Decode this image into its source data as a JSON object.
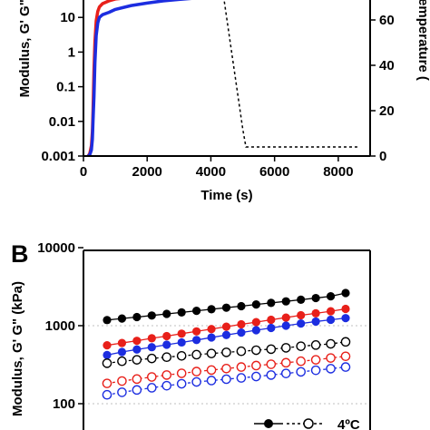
{
  "chart_data": [
    {
      "panel": "",
      "type": "line",
      "xlabel": "Time (s)",
      "ylabel": "Modulus, G' G\" (",
      "y2label": "Temperature (",
      "xlim": [
        0,
        9000
      ],
      "ylim": [
        0.001,
        300
      ],
      "yscale": "log",
      "y2lim": [
        0,
        80
      ],
      "xticks": [
        "0",
        "2000",
        "4000",
        "6000",
        "8000"
      ],
      "yticks": [
        "0.001",
        "0.01",
        "0.1",
        "1",
        "10"
      ],
      "y2ticks": [
        "0",
        "20",
        "40",
        "60"
      ],
      "series": [
        {
          "color": "#e8201a",
          "x": [
            150,
            200,
            250,
            280,
            300,
            330,
            360,
            400,
            450,
            500,
            600,
            800,
            1000,
            1500,
            2000,
            2500,
            3000,
            3500,
            4000
          ],
          "y": [
            0.001,
            0.0012,
            0.002,
            0.005,
            0.02,
            0.3,
            2,
            8,
            15,
            20,
            25,
            30,
            34,
            38,
            41,
            43,
            45,
            46,
            47
          ]
        },
        {
          "color": "#1c2de0",
          "x": [
            150,
            200,
            250,
            280,
            300,
            330,
            360,
            400,
            450,
            500,
            600,
            800,
            1000,
            1500,
            2000,
            2500,
            3000,
            3500,
            4000
          ],
          "y": [
            0.001,
            0.0011,
            0.0015,
            0.003,
            0.01,
            0.05,
            0.5,
            3,
            7,
            10,
            12,
            14,
            17,
            22,
            26,
            30,
            33,
            36,
            38
          ]
        }
      ],
      "temperature": {
        "x": [
          4300,
          5000,
          5100,
          5200,
          8600
        ],
        "y": [
          80,
          12,
          4,
          4,
          4
        ]
      }
    },
    {
      "panel": "B",
      "type": "line",
      "xlabel": "",
      "ylabel": "Modulus, G' G\" (kPa)",
      "ylim": [
        60,
        10000
      ],
      "yscale": "log",
      "yticks": [
        "100",
        "1000",
        "10000"
      ],
      "legend_label": "4ºC",
      "x": [
        1,
        2,
        3,
        4,
        5,
        6,
        7,
        8,
        9,
        10,
        11,
        12,
        13,
        14,
        15,
        16,
        17
      ],
      "series": [
        {
          "color": "#000000",
          "filled": true,
          "values": [
            1180,
            1235,
            1290,
            1350,
            1415,
            1480,
            1550,
            1625,
            1700,
            1780,
            1870,
            1960,
            2050,
            2150,
            2260,
            2380,
            2620
          ]
        },
        {
          "color": "#e8201a",
          "filled": true,
          "values": [
            560,
            600,
            640,
            690,
            735,
            790,
            845,
            905,
            970,
            1040,
            1110,
            1190,
            1270,
            1360,
            1440,
            1530,
            1640
          ]
        },
        {
          "color": "#1c2de0",
          "filled": true,
          "values": [
            420,
            460,
            495,
            530,
            570,
            610,
            655,
            705,
            760,
            815,
            875,
            935,
            1000,
            1065,
            1130,
            1190,
            1250
          ]
        },
        {
          "color": "#000000",
          "filled": false,
          "values": [
            330,
            350,
            365,
            380,
            395,
            410,
            425,
            440,
            455,
            470,
            485,
            500,
            520,
            545,
            565,
            585,
            620
          ]
        },
        {
          "color": "#e8201a",
          "filled": false,
          "values": [
            182,
            195,
            207,
            220,
            233,
            245,
            258,
            270,
            282,
            295,
            308,
            320,
            335,
            350,
            365,
            385,
            405
          ]
        },
        {
          "color": "#1c2de0",
          "filled": false,
          "values": [
            130,
            140,
            150,
            160,
            170,
            180,
            190,
            198,
            206,
            214,
            223,
            233,
            244,
            256,
            268,
            281,
            295
          ]
        }
      ]
    }
  ]
}
